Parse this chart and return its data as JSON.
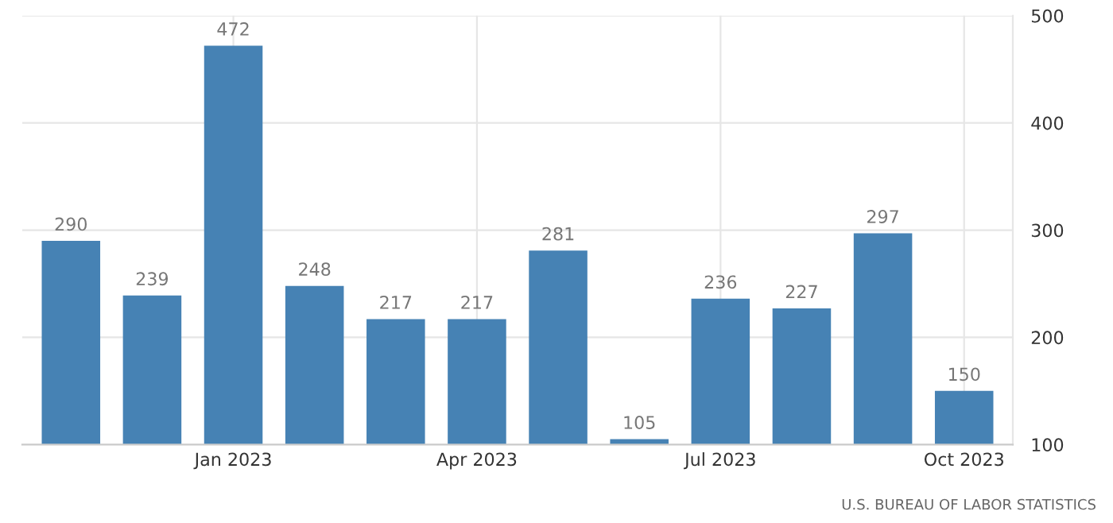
{
  "chart_data": {
    "type": "bar",
    "categories": [
      null,
      null,
      "Jan 2023",
      null,
      null,
      "Apr 2023",
      null,
      null,
      "Jul 2023",
      null,
      null,
      "Oct 2023"
    ],
    "values": [
      290,
      239,
      472,
      248,
      217,
      217,
      281,
      105,
      236,
      227,
      297,
      150
    ],
    "color": "#4682b4",
    "ylim": [
      100,
      500
    ],
    "yticks": [
      100,
      200,
      300,
      400,
      500
    ],
    "grid": true,
    "data_labels": true,
    "annotations": [
      "U.S. BUREAU OF LABOR STATISTICS"
    ]
  }
}
